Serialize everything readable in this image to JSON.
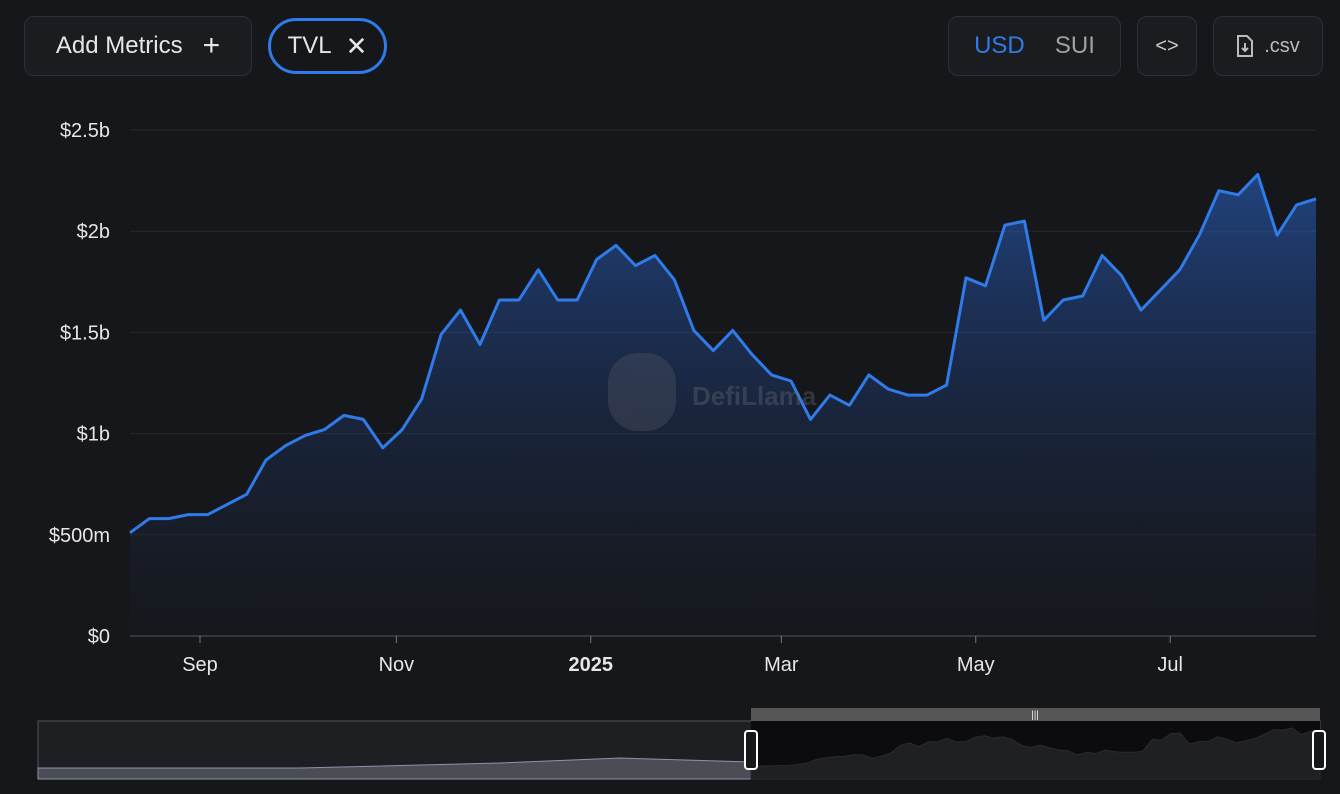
{
  "controls": {
    "add_metrics": "Add Metrics",
    "metric": "TVL",
    "currencies": [
      "USD",
      "SUI"
    ],
    "csv": ".csv"
  },
  "chart_data": {
    "type": "area",
    "watermark": "DefiLlama",
    "color": "#2f7bea",
    "grid": true,
    "values": [
      510000000,
      580000000,
      580000000,
      600000000,
      600000000,
      650000000,
      700000000,
      870000000,
      940000000,
      990000000,
      1020000000,
      1090000000,
      1070000000,
      930000000,
      1020000000,
      1170000000,
      1490000000,
      1610000000,
      1440000000,
      1660000000,
      1660000000,
      1810000000,
      1660000000,
      1660000000,
      1860000000,
      1930000000,
      1830000000,
      1880000000,
      1760000000,
      1510000000,
      1410000000,
      1510000000,
      1390000000,
      1290000000,
      1260000000,
      1070000000,
      1190000000,
      1140000000,
      1290000000,
      1220000000,
      1190000000,
      1190000000,
      1240000000,
      1770000000,
      1730000000,
      2030000000,
      2050000000,
      1560000000,
      1660000000,
      1680000000,
      1880000000,
      1780000000,
      1610000000,
      1710000000,
      1810000000,
      1980000000,
      2200000000,
      2180000000,
      2280000000,
      1980000000,
      2130000000,
      2160000000
    ],
    "xlim": [
      0,
      61
    ],
    "xticks": [
      {
        "value": 3.6,
        "label": "Sep"
      },
      {
        "value": 13.7,
        "label": "Nov"
      },
      {
        "value": 23.7,
        "label": "2025",
        "bold": true
      },
      {
        "value": 33.5,
        "label": "Mar"
      },
      {
        "value": 43.5,
        "label": "May"
      },
      {
        "value": 53.5,
        "label": "Jul"
      }
    ],
    "ylim": [
      0,
      2500000000
    ],
    "yticks": [
      {
        "value": 0,
        "label": "$0"
      },
      {
        "value": 500000000,
        "label": "$500m"
      },
      {
        "value": 1000000000,
        "label": "$1b"
      },
      {
        "value": 1500000000,
        "label": "$1.5b"
      },
      {
        "value": 2000000000,
        "label": "$2b"
      },
      {
        "value": 2500000000,
        "label": "$2.5b"
      }
    ]
  }
}
